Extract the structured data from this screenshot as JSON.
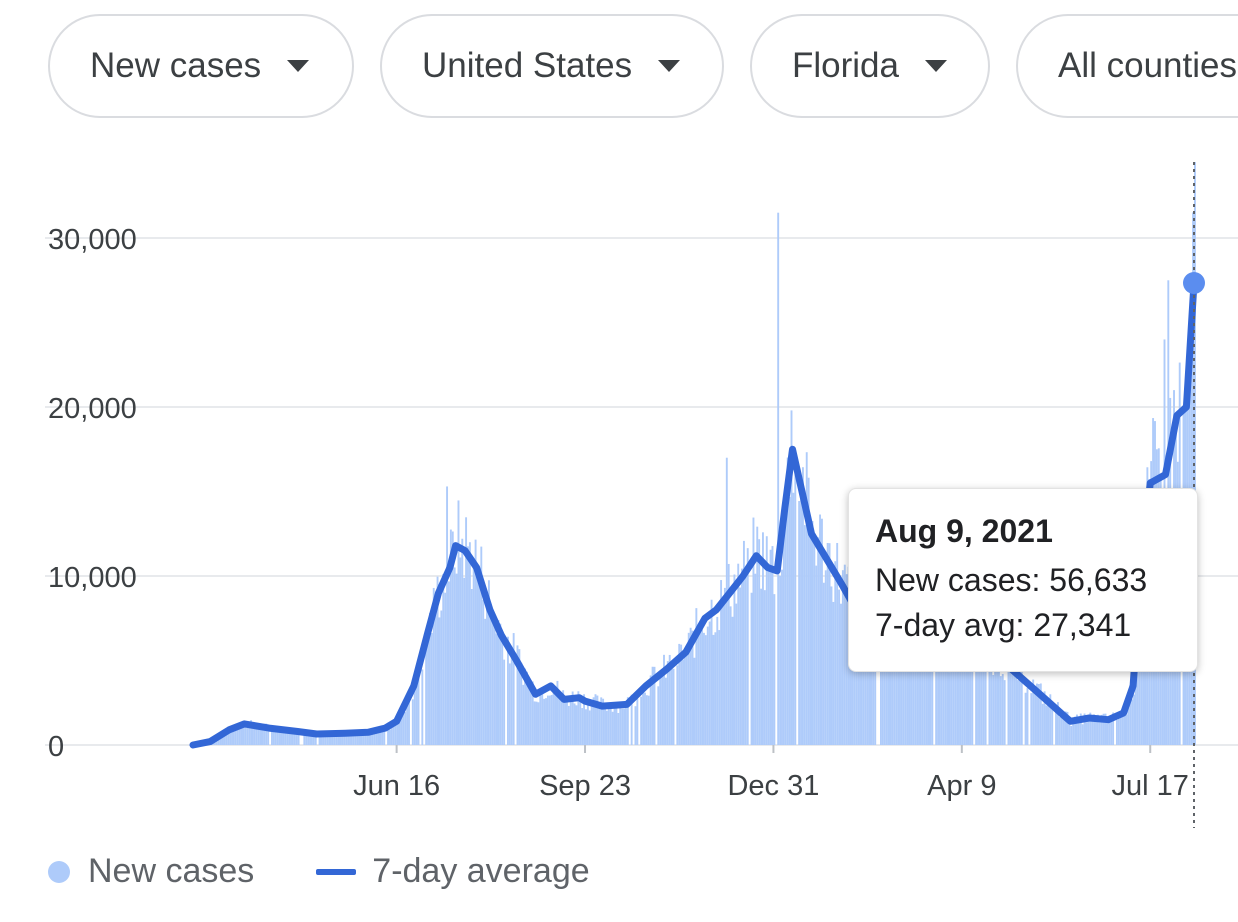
{
  "filters": {
    "metric": "New cases",
    "country": "United States",
    "state": "Florida",
    "county": "All counties"
  },
  "tooltip": {
    "date": "Aug 9, 2021",
    "new_cases_label": "New cases: 56,633",
    "avg_label": "7-day avg: 27,341"
  },
  "legend": {
    "bars_label": "New cases",
    "line_label": "7-day average"
  },
  "colors": {
    "bars": "#aecbfa",
    "line": "#3367d6",
    "grid": "#e8eaed",
    "marker": "#5b8def"
  },
  "chart_data": {
    "type": "bar",
    "title": "",
    "xlabel": "",
    "ylabel": "",
    "x_start": "2020-03-01",
    "x_end": "2021-08-09",
    "x_ticks": [
      {
        "label": "Jun 16",
        "date": "2020-06-16"
      },
      {
        "label": "Sep 23",
        "date": "2020-09-23"
      },
      {
        "label": "Dec 31",
        "date": "2020-12-31"
      },
      {
        "label": "Apr 9",
        "date": "2021-04-09"
      },
      {
        "label": "Jul 17",
        "date": "2021-07-17"
      }
    ],
    "y_ticks": [
      {
        "label": "0",
        "value": 0
      },
      {
        "label": "10,000",
        "value": 10000
      },
      {
        "label": "20,000",
        "value": 20000
      },
      {
        "label": "30,000",
        "value": 30000
      }
    ],
    "ylim": [
      0,
      34500
    ],
    "series": [
      {
        "name": "New cases",
        "type": "bar"
      },
      {
        "name": "7-day average",
        "type": "line"
      }
    ],
    "seven_day_average": [
      [
        "2020-03-01",
        0
      ],
      [
        "2020-03-10",
        200
      ],
      [
        "2020-03-20",
        900
      ],
      [
        "2020-03-28",
        1250
      ],
      [
        "2020-04-10",
        1000
      ],
      [
        "2020-04-25",
        800
      ],
      [
        "2020-05-05",
        650
      ],
      [
        "2020-05-20",
        700
      ],
      [
        "2020-06-01",
        750
      ],
      [
        "2020-06-10",
        1000
      ],
      [
        "2020-06-16",
        1400
      ],
      [
        "2020-06-25",
        3500
      ],
      [
        "2020-07-02",
        6500
      ],
      [
        "2020-07-08",
        9000
      ],
      [
        "2020-07-14",
        10500
      ],
      [
        "2020-07-17",
        11800
      ],
      [
        "2020-07-22",
        11500
      ],
      [
        "2020-07-28",
        10500
      ],
      [
        "2020-08-04",
        8000
      ],
      [
        "2020-08-10",
        6500
      ],
      [
        "2020-08-18",
        5000
      ],
      [
        "2020-08-28",
        3000
      ],
      [
        "2020-09-05",
        3500
      ],
      [
        "2020-09-12",
        2700
      ],
      [
        "2020-09-20",
        2800
      ],
      [
        "2020-09-23",
        2600
      ],
      [
        "2020-10-02",
        2300
      ],
      [
        "2020-10-15",
        2400
      ],
      [
        "2020-10-25",
        3500
      ],
      [
        "2020-11-05",
        4500
      ],
      [
        "2020-11-15",
        5500
      ],
      [
        "2020-11-25",
        7500
      ],
      [
        "2020-12-01",
        8000
      ],
      [
        "2020-12-08",
        9000
      ],
      [
        "2020-12-15",
        10000
      ],
      [
        "2020-12-22",
        11200
      ],
      [
        "2020-12-28",
        10500
      ],
      [
        "2021-01-02",
        10300
      ],
      [
        "2021-01-06",
        14000
      ],
      [
        "2021-01-10",
        17500
      ],
      [
        "2021-01-14",
        15500
      ],
      [
        "2021-01-20",
        12500
      ],
      [
        "2021-01-28",
        11000
      ],
      [
        "2021-02-05",
        9500
      ],
      [
        "2021-02-15",
        7500
      ],
      [
        "2021-02-25",
        6500
      ],
      [
        "2021-03-10",
        5500
      ],
      [
        "2021-04-01",
        5300
      ],
      [
        "2021-04-20",
        5500
      ],
      [
        "2021-05-05",
        4500
      ],
      [
        "2021-05-20",
        3000
      ],
      [
        "2021-06-01",
        1800
      ],
      [
        "2021-06-05",
        1400
      ],
      [
        "2021-06-15",
        1600
      ],
      [
        "2021-06-25",
        1500
      ],
      [
        "2021-07-03",
        1900
      ],
      [
        "2021-07-08",
        3500
      ],
      [
        "2021-07-12",
        10000
      ],
      [
        "2021-07-17",
        15500
      ],
      [
        "2021-07-25",
        16000
      ],
      [
        "2021-07-31",
        19500
      ],
      [
        "2021-08-05",
        20000
      ],
      [
        "2021-08-09",
        27341
      ]
    ],
    "new_cases_notable": [
      [
        "2020-07-12",
        15300
      ],
      [
        "2021-01-02",
        31500
      ],
      [
        "2021-01-09",
        19800
      ],
      [
        "2020-12-06",
        17000
      ],
      [
        "2021-07-17",
        16800
      ],
      [
        "2021-07-24",
        24000
      ],
      [
        "2021-07-26",
        27500
      ],
      [
        "2021-08-09",
        56633
      ]
    ],
    "highlight": {
      "date": "2021-08-09",
      "new_cases": 56633,
      "seven_day_avg": 27341
    }
  }
}
